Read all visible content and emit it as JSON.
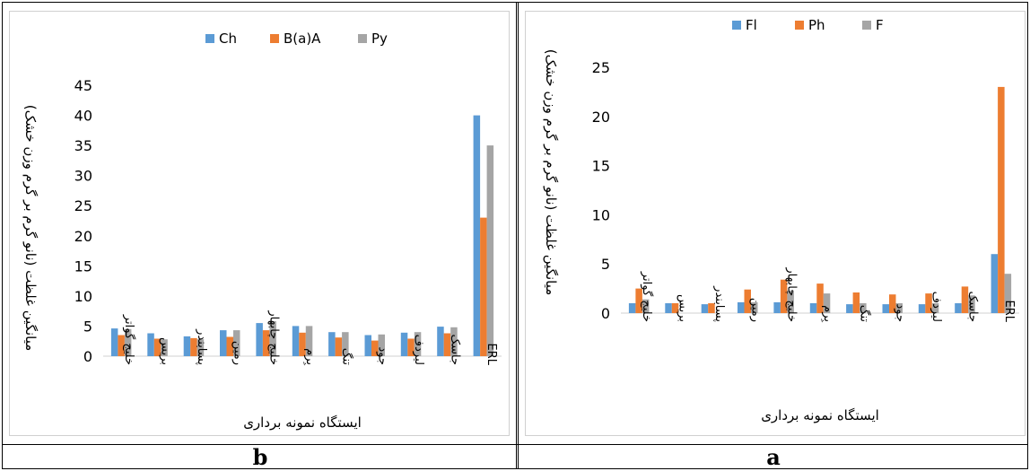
{
  "panels": [
    {
      "id": "b",
      "label": "b"
    },
    {
      "id": "a",
      "label": "a"
    }
  ],
  "chart_data": [
    {
      "id": "b",
      "type": "bar",
      "panel_label": "b",
      "title": "",
      "xlabel": "ایستگاه نمونه برداری",
      "ylabel": "میانگین غلظت (نانو گرم بر گرم وزن خشک)",
      "ylim": [
        0,
        45
      ],
      "yticks": [
        0,
        5,
        10,
        15,
        20,
        25,
        30,
        35,
        40,
        45
      ],
      "grid": false,
      "legend": "top",
      "categories": [
        "خلیج گواتر",
        "بریس",
        "پسابندر",
        "رمین",
        "خلیج چابهار",
        "بِرم",
        "تنگ",
        "جود",
        "لیردف",
        "جاسک",
        "ERL"
      ],
      "series": [
        {
          "name": "Ch",
          "color": "#5b9bd5",
          "values": [
            4.6,
            3.8,
            3.3,
            4.3,
            5.5,
            5.0,
            4.0,
            3.5,
            3.9,
            4.9,
            40
          ]
        },
        {
          "name": "B(a)A",
          "color": "#ed7d31",
          "values": [
            3.5,
            2.9,
            3.0,
            3.2,
            4.3,
            3.9,
            3.1,
            2.6,
            2.9,
            3.8,
            23
          ]
        },
        {
          "name": "Py",
          "color": "#a5a5a5",
          "values": [
            4.5,
            2.8,
            2.8,
            4.3,
            5.8,
            5.0,
            4.0,
            3.6,
            4.0,
            4.8,
            35
          ]
        }
      ]
    },
    {
      "id": "a",
      "type": "bar",
      "panel_label": "a",
      "title": "",
      "xlabel": "ایستگاه نمونه برداری",
      "ylabel": "میانگین غلظت (نانو گرم بر گرم وزن خشک)",
      "ylim": [
        0,
        25
      ],
      "yticks": [
        0,
        5,
        10,
        15,
        20,
        25
      ],
      "grid": false,
      "legend": "top",
      "categories": [
        "خلیج گواتر",
        "بریس",
        "پسابندر",
        "رمین",
        "خلیج چابهار",
        "بِرم",
        "تنگ",
        "جود",
        "لیردف",
        "جاسک",
        "ERL"
      ],
      "series": [
        {
          "name": "Fl",
          "color": "#5b9bd5",
          "values": [
            1.0,
            1.0,
            0.9,
            1.1,
            1.1,
            1.0,
            0.9,
            0.9,
            0.9,
            1.0,
            6.0
          ]
        },
        {
          "name": "Ph",
          "color": "#ed7d31",
          "values": [
            2.5,
            1.0,
            1.0,
            2.4,
            3.4,
            3.0,
            2.1,
            1.9,
            2.0,
            2.7,
            23
          ]
        },
        {
          "name": "F",
          "color": "#a5a5a5",
          "values": [
            1.4,
            0,
            0,
            1.1,
            2.3,
            2.0,
            1.0,
            1.0,
            1.0,
            1.8,
            4.0
          ]
        }
      ]
    }
  ]
}
